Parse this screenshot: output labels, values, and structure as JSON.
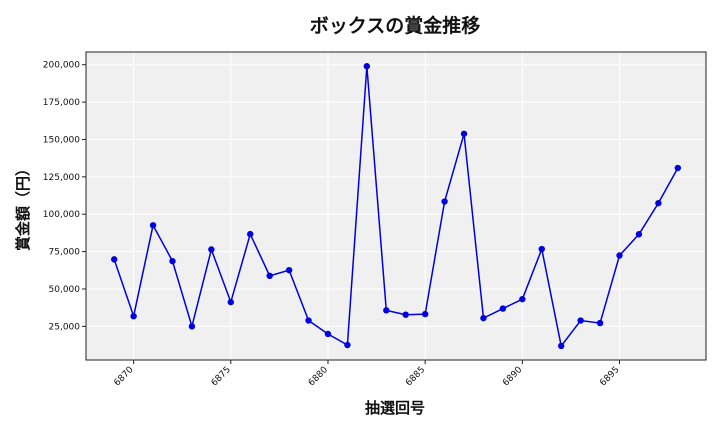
{
  "chart_data": {
    "type": "line",
    "title": "ボックスの賞金推移",
    "xlabel": "抽選回号",
    "ylabel": "賞金額（円）",
    "x": [
      6869,
      6870,
      6871,
      6872,
      6873,
      6874,
      6875,
      6876,
      6877,
      6878,
      6879,
      6880,
      6881,
      6882,
      6883,
      6884,
      6885,
      6886,
      6887,
      6888,
      6889,
      6890,
      6891,
      6892,
      6893,
      6894,
      6895,
      6896,
      6897,
      6898
    ],
    "series": [
      {
        "values": [
          69800,
          31800,
          92600,
          68600,
          25000,
          76400,
          41200,
          86700,
          58800,
          62600,
          28900,
          19900,
          12500,
          199000,
          35700,
          32800,
          33200,
          108500,
          153800,
          30500,
          36900,
          43200,
          76700,
          11900,
          28900,
          27200,
          72400,
          86600,
          107400,
          130900
        ],
        "color": "#0000dd"
      }
    ],
    "xticks": [
      "6870",
      "6875",
      "6880",
      "6885",
      "6890",
      "6895"
    ],
    "yticks": [
      "25,000",
      "50,000",
      "75,000",
      "100,000",
      "125,000",
      "150,000",
      "175,000",
      "200,000"
    ],
    "xlim": [
      6867.55,
      6899.45
    ],
    "ylim": [
      2500,
      208500
    ],
    "grid": true,
    "background": "#f0f0f0"
  }
}
